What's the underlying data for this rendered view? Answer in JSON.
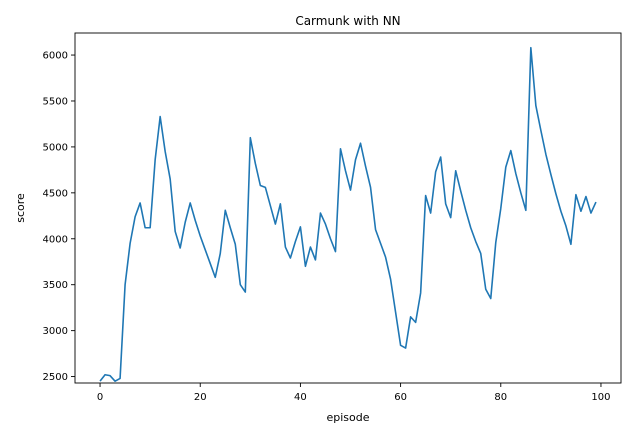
{
  "chart_data": {
    "type": "line",
    "title": "Carmunk with NN",
    "xlabel": "episode",
    "ylabel": "score",
    "xlim": [
      -5,
      104
    ],
    "ylim": [
      2430,
      6240
    ],
    "xticks": [
      0,
      20,
      40,
      60,
      80,
      100
    ],
    "yticks": [
      2500,
      3000,
      3500,
      4000,
      4500,
      5000,
      5500,
      6000
    ],
    "grid": false,
    "color": "#1f77b4",
    "x": [
      0,
      1,
      2,
      3,
      4,
      5,
      6,
      7,
      8,
      9,
      10,
      11,
      12,
      13,
      14,
      15,
      16,
      17,
      18,
      19,
      20,
      21,
      22,
      23,
      24,
      25,
      26,
      27,
      28,
      29,
      30,
      31,
      32,
      33,
      34,
      35,
      36,
      37,
      38,
      39,
      40,
      41,
      42,
      43,
      44,
      45,
      46,
      47,
      48,
      49,
      50,
      51,
      52,
      53,
      54,
      55,
      56,
      57,
      58,
      59,
      60,
      61,
      62,
      63,
      64,
      65,
      66,
      67,
      68,
      69,
      70,
      71,
      72,
      73,
      74,
      75,
      76,
      77,
      78,
      79,
      80,
      81,
      82,
      83,
      84,
      85,
      86,
      87,
      88,
      89,
      90,
      91,
      92,
      93,
      94,
      95,
      96,
      97,
      98,
      99
    ],
    "y": [
      2450,
      2520,
      2510,
      2450,
      2480,
      3500,
      3950,
      4240,
      4390,
      4120,
      4120,
      4860,
      5330,
      4950,
      4650,
      4080,
      3900,
      4180,
      4390,
      4200,
      4030,
      3880,
      3730,
      3580,
      3840,
      4310,
      4120,
      3940,
      3500,
      3420,
      5100,
      4820,
      4580,
      4560,
      4360,
      4160,
      4380,
      3910,
      3790,
      3970,
      4130,
      3700,
      3910,
      3770,
      4280,
      4160,
      4000,
      3860,
      4980,
      4740,
      4530,
      4860,
      5040,
      4790,
      4560,
      4100,
      3950,
      3800,
      3560,
      3200,
      2840,
      2810,
      3150,
      3090,
      3410,
      4470,
      4280,
      4730,
      4890,
      4380,
      4230,
      4740,
      4520,
      4310,
      4120,
      3970,
      3840,
      3450,
      3350,
      3960,
      4330,
      4780,
      4960,
      4710,
      4500,
      4310,
      6080,
      5450,
      5180,
      4920,
      4700,
      4490,
      4300,
      4140,
      3940,
      4480,
      4300,
      4460,
      4280,
      4400
    ]
  }
}
